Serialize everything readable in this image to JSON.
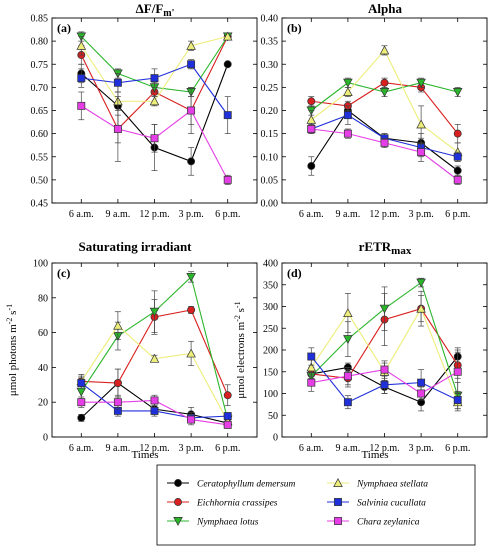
{
  "figure": {
    "xlabel": "Times",
    "colors": {
      "s1": "#000000",
      "s2": "#d91f1f",
      "s3": "#2bb52b",
      "s4": "#eded7a",
      "s5": "#1f2fd9",
      "s6": "#e63ee6"
    },
    "markers": {
      "s1": "circle",
      "s2": "circle",
      "s3": "triangle-down",
      "s4": "triangle-up",
      "s5": "square",
      "s6": "square"
    },
    "legend": [
      "Ceratophyllum demersum",
      "Eichhornia crassipes",
      "Nymphaea lotus",
      "Nymphaea stellata",
      "Salvinia cucullata",
      "Chara zeylanica"
    ]
  },
  "chart_data": [
    {
      "type": "line",
      "label": "(a)",
      "title": "ΔF/Fm'",
      "ylabel": "",
      "categories": [
        "6 a.m.",
        "9 a.m.",
        "12 p.m.",
        "3 p.m.",
        "6 p.m."
      ],
      "ylim": [
        0.45,
        0.85
      ],
      "yticks": [
        "0.45",
        "0.50",
        "0.55",
        "0.60",
        "0.65",
        "0.70",
        "0.75",
        "0.80",
        "0.85"
      ],
      "series": [
        {
          "name": "Ceratophyllum demersum",
          "key": "s1",
          "values": [
            0.73,
            0.66,
            0.57,
            0.54,
            0.75
          ],
          "errors": [
            0.02,
            0.05,
            0.05,
            0.03,
            0.0
          ]
        },
        {
          "name": "Eichhornia crassipes",
          "key": "s2",
          "values": [
            0.77,
            0.61,
            0.69,
            0.65,
            0.81
          ],
          "errors": [
            0.02,
            0.03,
            0.01,
            0.03,
            0.0
          ]
        },
        {
          "name": "Nymphaea lotus",
          "key": "s3",
          "values": [
            0.81,
            0.73,
            0.7,
            0.69,
            0.81
          ],
          "errors": [
            0.01,
            0.01,
            0.01,
            0.01,
            0.0
          ]
        },
        {
          "name": "Nymphaea stellata",
          "key": "s4",
          "values": [
            0.79,
            0.67,
            0.67,
            0.79,
            0.81
          ],
          "errors": [
            0.02,
            0.02,
            0.01,
            0.01,
            0.0
          ]
        },
        {
          "name": "Salvinia cucullata",
          "key": "s5",
          "values": [
            0.72,
            0.71,
            0.72,
            0.75,
            0.64
          ],
          "errors": [
            0.02,
            0.02,
            0.02,
            0.01,
            0.04
          ]
        },
        {
          "name": "Chara zeylanica",
          "key": "s6",
          "values": [
            0.66,
            0.61,
            0.59,
            0.65,
            0.5
          ],
          "errors": [
            0.03,
            0.07,
            0.03,
            0.05,
            0.01
          ]
        }
      ]
    },
    {
      "type": "line",
      "label": "(b)",
      "title": "Alpha",
      "ylabel": "",
      "categories": [
        "6 a.m.",
        "9 a.m.",
        "12 p.m.",
        "3 p.m.",
        "6 p.m."
      ],
      "ylim": [
        0.0,
        0.4
      ],
      "yticks": [
        "0.00",
        "0.05",
        "0.10",
        "0.15",
        "0.20",
        "0.25",
        "0.30",
        "0.35",
        "0.40"
      ],
      "series": [
        {
          "name": "Ceratophyllum demersum",
          "key": "s1",
          "values": [
            0.08,
            0.2,
            0.14,
            0.13,
            0.07
          ],
          "errors": [
            0.02,
            0.01,
            0.01,
            0.02,
            0.01
          ]
        },
        {
          "name": "Eichhornia crassipes",
          "key": "s2",
          "values": [
            0.22,
            0.21,
            0.26,
            0.25,
            0.15
          ],
          "errors": [
            0.01,
            0.01,
            0.01,
            0.01,
            0.02
          ]
        },
        {
          "name": "Nymphaea lotus",
          "key": "s3",
          "values": [
            0.2,
            0.26,
            0.24,
            0.26,
            0.24
          ],
          "errors": [
            0.01,
            0.01,
            0.01,
            0.01,
            0.01
          ]
        },
        {
          "name": "Nymphaea stellata",
          "key": "s4",
          "values": [
            0.18,
            0.24,
            0.33,
            0.17,
            0.11
          ],
          "errors": [
            0.02,
            0.01,
            0.01,
            0.04,
            0.02
          ]
        },
        {
          "name": "Salvinia cucullata",
          "key": "s5",
          "values": [
            0.16,
            0.19,
            0.14,
            0.12,
            0.1
          ],
          "errors": [
            0.01,
            0.02,
            0.01,
            0.02,
            0.01
          ]
        },
        {
          "name": "Chara zeylanica",
          "key": "s6",
          "values": [
            0.16,
            0.15,
            0.13,
            0.11,
            0.05
          ],
          "errors": [
            0.01,
            0.01,
            0.01,
            0.02,
            0.01
          ]
        }
      ]
    },
    {
      "type": "line",
      "label": "(c)",
      "title": "Saturating irradiant",
      "ylabel": "μmol photons m-2 s-1",
      "categories": [
        "6 a.m.",
        "9 a.m.",
        "12 p.m.",
        "3 p.m.",
        "6 p.m."
      ],
      "ylim": [
        0,
        100
      ],
      "yticks": [
        "0",
        "20",
        "40",
        "60",
        "80",
        "100"
      ],
      "series": [
        {
          "name": "Ceratophyllum demersum",
          "key": "s1",
          "values": [
            11,
            31,
            16,
            13,
            8
          ],
          "errors": [
            2,
            8,
            3,
            4,
            2
          ]
        },
        {
          "name": "Eichhornia crassipes",
          "key": "s2",
          "values": [
            32,
            31,
            69,
            73,
            24
          ],
          "errors": [
            4,
            8,
            10,
            2,
            6
          ]
        },
        {
          "name": "Nymphaea lotus",
          "key": "s3",
          "values": [
            26,
            58,
            72,
            92,
            10
          ],
          "errors": [
            4,
            8,
            12,
            3,
            3
          ]
        },
        {
          "name": "Nymphaea stellata",
          "key": "s4",
          "values": [
            32,
            64,
            45,
            48,
            9
          ],
          "errors": [
            3,
            8,
            2,
            7,
            3
          ]
        },
        {
          "name": "Salvinia cucullata",
          "key": "s5",
          "values": [
            31,
            15,
            15,
            11,
            12
          ],
          "errors": [
            3,
            3,
            3,
            3,
            2
          ]
        },
        {
          "name": "Chara zeylanica",
          "key": "s6",
          "values": [
            20,
            20,
            21,
            10,
            7
          ],
          "errors": [
            3,
            4,
            3,
            3,
            2
          ]
        }
      ]
    },
    {
      "type": "line",
      "label": "(d)",
      "title": "rETRmax",
      "ylabel": "μmol electrons m-2 s-1",
      "categories": [
        "6 a.m.",
        "9 a.m.",
        "12 p.m.",
        "3 p.m.",
        "6 p.m."
      ],
      "ylim": [
        0,
        400
      ],
      "yticks": [
        "0",
        "50",
        "100",
        "150",
        "200",
        "250",
        "300",
        "350",
        "400"
      ],
      "series": [
        {
          "name": "Ceratophyllum demersum",
          "key": "s1",
          "values": [
            145,
            160,
            115,
            80,
            185
          ],
          "errors": [
            10,
            10,
            15,
            20,
            20
          ]
        },
        {
          "name": "Eichhornia crassipes",
          "key": "s2",
          "values": [
            145,
            135,
            270,
            295,
            165
          ],
          "errors": [
            15,
            20,
            60,
            30,
            30
          ]
        },
        {
          "name": "Nymphaea lotus",
          "key": "s3",
          "values": [
            140,
            225,
            295,
            355,
            95
          ],
          "errors": [
            15,
            40,
            50,
            10,
            30
          ]
        },
        {
          "name": "Nymphaea stellata",
          "key": "s4",
          "values": [
            160,
            285,
            150,
            295,
            80
          ],
          "errors": [
            20,
            45,
            20,
            40,
            20
          ]
        },
        {
          "name": "Salvinia cucullata",
          "key": "s5",
          "values": [
            185,
            80,
            120,
            125,
            85
          ],
          "errors": [
            20,
            15,
            20,
            30,
            20
          ]
        },
        {
          "name": "Chara zeylanica",
          "key": "s6",
          "values": [
            125,
            140,
            155,
            100,
            150
          ],
          "errors": [
            20,
            20,
            20,
            15,
            50
          ]
        }
      ]
    }
  ]
}
